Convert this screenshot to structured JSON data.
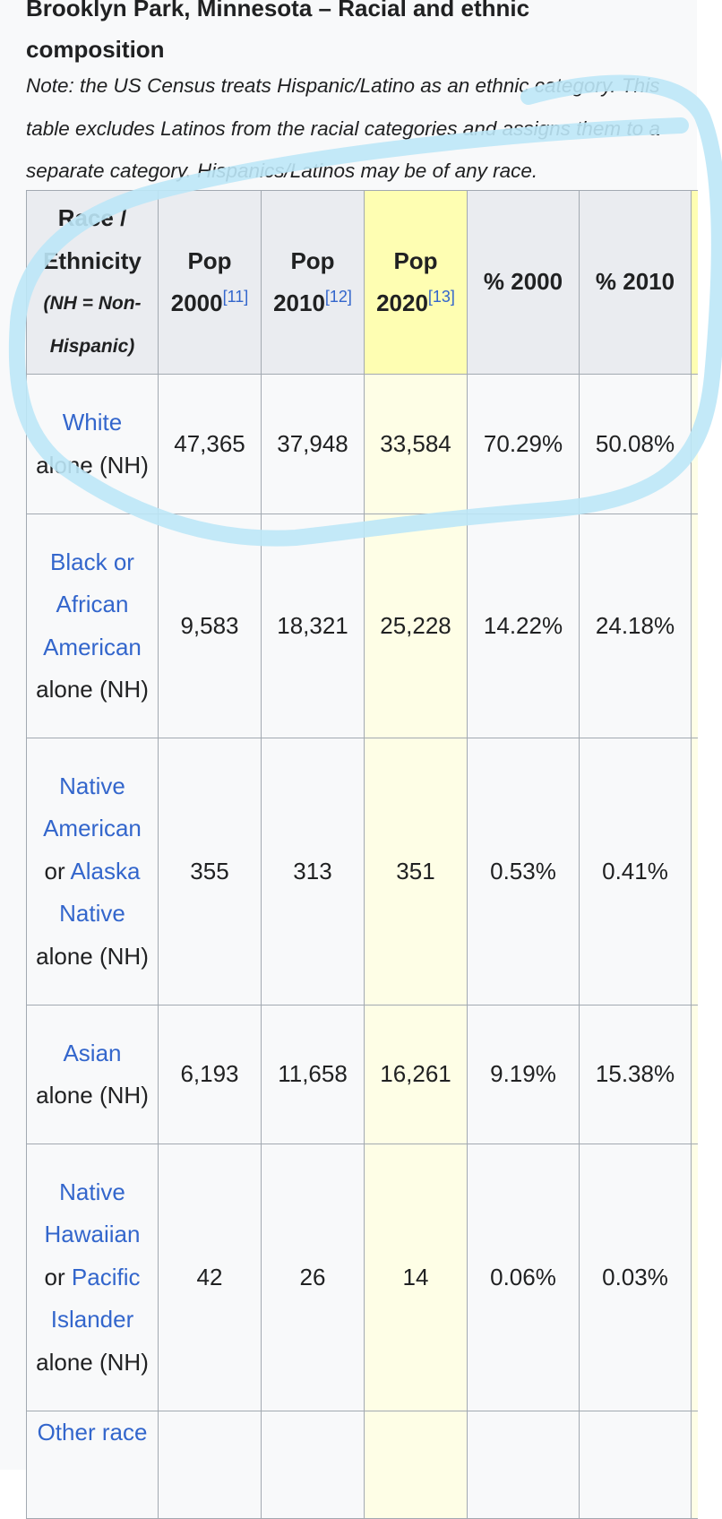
{
  "caption": {
    "line1": "Brooklyn Park, Minnesota – Racial and ethnic",
    "line2": "composition"
  },
  "note": "Note: the US Census treats Hispanic/Latino as an ethnic category. This table excludes Latinos from the racial categories and assigns them to a separate category. Hispanics/Latinos may be of any race.",
  "table": {
    "headers": {
      "race_line1": "Race /",
      "race_line2": "Ethnicity",
      "race_sub1": "(NH = Non-",
      "race_sub2": "Hispanic)",
      "pop2000": "Pop 2000",
      "pop2000_ref": "[11]",
      "pop2010": "Pop 2010",
      "pop2010_ref": "[12]",
      "pop2020": "Pop 2020",
      "pop2020_ref": "[13]",
      "pct2000": "% 2000",
      "pct2010": "% 2010"
    },
    "rows": [
      {
        "name_link": "White",
        "name_rest": "alone (NH)",
        "pop2000": "47,365",
        "pop2010": "37,948",
        "pop2020": "33,584",
        "pct2000": "70.29%",
        "pct2010": "50.08%"
      },
      {
        "name_link": "Black or African American",
        "name_rest": "alone (NH)",
        "pop2000": "9,583",
        "pop2010": "18,321",
        "pop2020": "25,228",
        "pct2000": "14.22%",
        "pct2010": "24.18%"
      },
      {
        "name_link": "Native American",
        "name_mid": "or",
        "name_link2": "Alaska Native",
        "name_rest": "alone (NH)",
        "pop2000": "355",
        "pop2010": "313",
        "pop2020": "351",
        "pct2000": "0.53%",
        "pct2010": "0.41%"
      },
      {
        "name_link": "Asian",
        "name_rest": "alone (NH)",
        "pop2000": "6,193",
        "pop2010": "11,658",
        "pop2020": "16,261",
        "pct2000": "9.19%",
        "pct2010": "15.38%"
      },
      {
        "name_link": "Native Hawaiian",
        "name_mid": "or",
        "name_link2": "Pacific Islander",
        "name_rest": "alone (NH)",
        "pop2000": "42",
        "pop2010": "26",
        "pop2020": "14",
        "pct2000": "0.06%",
        "pct2010": "0.03%"
      },
      {
        "name_link": "Other race"
      }
    ]
  },
  "colors": {
    "link": "#3366cc",
    "highlight_header": "#fefeb2",
    "highlight_cell": "#fefee6",
    "annotation_stroke": "#bde7f7"
  }
}
